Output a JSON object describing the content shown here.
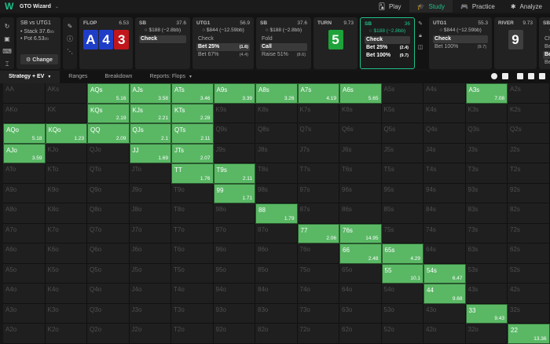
{
  "app": {
    "title": "GTO Wizard",
    "logo": "W",
    "nav": [
      {
        "label": "Play",
        "icon": "cards-icon",
        "active": false
      },
      {
        "label": "Study",
        "icon": "graduation-cap-icon",
        "active": true
      },
      {
        "label": "Practice",
        "icon": "gamepad-icon",
        "active": false
      },
      {
        "label": "Analyze",
        "icon": "bulb-icon",
        "active": false
      }
    ]
  },
  "scenario": {
    "title": "SB vs UTG1",
    "stack_label": "• Stack 37.6",
    "stack_unit": "bb",
    "pot_label": "• Pot 6.53",
    "pot_unit": "bb",
    "change_button": "⚙ Change"
  },
  "flop": {
    "name": "FLOP",
    "pot": "6.53",
    "cards": [
      {
        "rank": "A",
        "color": "blue"
      },
      {
        "rank": "4",
        "color": "blue"
      },
      {
        "rank": "3",
        "color": "red"
      }
    ]
  },
  "actions": [
    {
      "player": "SB",
      "stack": "37.6",
      "chips": "○ $188 (−2.8bb)",
      "options": [
        {
          "label": "Check",
          "size": "",
          "selected": true
        }
      ]
    },
    {
      "player": "UTG1",
      "stack": "56.9",
      "chips": "○ $844 (−12.59bb)",
      "options": [
        {
          "label": "Check",
          "size": "",
          "selected": false
        },
        {
          "label": "Bet 25%",
          "size": "(1.6)",
          "selected": true
        },
        {
          "label": "Bet 67%",
          "size": "(4.4)",
          "selected": false
        }
      ]
    },
    {
      "player": "SB",
      "stack": "37.6",
      "chips": "○ $188 (−2.8bb)",
      "options": [
        {
          "label": "Fold",
          "size": "",
          "selected": false
        },
        {
          "label": "Call",
          "size": "",
          "selected": true
        },
        {
          "label": "Raise 51%",
          "size": "(8.6)",
          "selected": false
        }
      ]
    }
  ],
  "turn": {
    "name": "TURN",
    "pot": "9.73",
    "card": "5"
  },
  "active_action": {
    "player": "SB",
    "stack": "36",
    "chips": "○ $188 (−2.8bb)",
    "options": [
      {
        "label": "Check",
        "size": "",
        "selected": true
      },
      {
        "label": "Bet 25%",
        "size": "(2.4)",
        "selected": false
      },
      {
        "label": "Bet 100%",
        "size": "(9.7)",
        "selected": false
      }
    ]
  },
  "next_action": {
    "player": "UTG1",
    "stack": "55.3",
    "chips": "○ $844 (−12.59bb)",
    "options": [
      {
        "label": "Check",
        "size": "",
        "selected": true
      },
      {
        "label": "Bet 100%",
        "size": "(9.7)",
        "selected": false
      }
    ]
  },
  "river": {
    "name": "RIVER",
    "pot": "9.73",
    "card": "9"
  },
  "partial_action": {
    "player": "SB",
    "options": [
      "Ch",
      "Be",
      "Be",
      "Be"
    ]
  },
  "toolbar": {
    "tabs": [
      {
        "label": "Strategy + EV",
        "dropdown": true,
        "active": true
      },
      {
        "label": "Ranges",
        "dropdown": false,
        "active": false
      },
      {
        "label": "Breakdown",
        "dropdown": false,
        "active": false
      },
      {
        "label": "Reports: Flops",
        "dropdown": true,
        "active": false
      }
    ]
  },
  "grid": {
    "ranks": [
      "A",
      "K",
      "Q",
      "J",
      "T",
      "9",
      "8",
      "7",
      "6",
      "5",
      "4",
      "3",
      "2"
    ],
    "highlight_color": "#5ab865",
    "cells": [
      [
        "AA",
        "AKs",
        "AQs|5.16",
        "AJs|3.58",
        "ATs|3.46",
        "A9s|3.39",
        "A8s|3.26",
        "A7s|4.19",
        "A6s|5.65",
        "A5s",
        "A4s",
        "A3s|7.08",
        "A2s"
      ],
      [
        "AKo",
        "KK",
        "KQs|2.19",
        "KJs|2.21",
        "KTs|2.28",
        "K9s",
        "K8s",
        "K7s",
        "K6s",
        "K5s",
        "K4s",
        "K3s",
        "K2s"
      ],
      [
        "AQo|5.18",
        "KQo|1.23",
        "QQ|2.09",
        "QJs|2.1",
        "QTs|2.11",
        "Q9s",
        "Q8s",
        "Q7s",
        "Q6s",
        "Q5s",
        "Q4s",
        "Q3s",
        "Q2s"
      ],
      [
        "AJo|3.59",
        "KJo",
        "QJo",
        "JJ|1.69",
        "JTs|2.07",
        "J9s",
        "J8s",
        "J7s",
        "J6s",
        "J5s",
        "J4s",
        "J3s",
        "J2s"
      ],
      [
        "ATo",
        "KTo",
        "QTo",
        "JTo",
        "TT|1.76",
        "T9s|2.11",
        "T8s",
        "T7s",
        "T6s",
        "T5s",
        "T4s",
        "T3s",
        "T2s"
      ],
      [
        "A9o",
        "K9o",
        "Q9o",
        "J9o",
        "T9o",
        "99|1.71",
        "98s",
        "97s",
        "96s",
        "95s",
        "94s",
        "93s",
        "92s"
      ],
      [
        "A8o",
        "K8o",
        "Q8o",
        "J8o",
        "T8o",
        "98o",
        "88|1.79",
        "87s",
        "86s",
        "85s",
        "84s",
        "83s",
        "82s"
      ],
      [
        "A7o",
        "K7o",
        "Q7o",
        "J7o",
        "T7o",
        "97o",
        "87o",
        "77|2.06",
        "76s|14.95",
        "75s",
        "74s",
        "73s",
        "72s"
      ],
      [
        "A6o",
        "K6o",
        "Q6o",
        "J6o",
        "T6o",
        "96o",
        "86o",
        "76o",
        "66|2.48",
        "65s|4.29",
        "64s",
        "63s",
        "62s"
      ],
      [
        "A5o",
        "K5o",
        "Q5o",
        "J5o",
        "T5o",
        "95o",
        "85o",
        "75o",
        "65o",
        "55|10.1",
        "54s|6.47",
        "53s",
        "52s"
      ],
      [
        "A4o",
        "K4o",
        "Q4o",
        "J4o",
        "T4o",
        "94o",
        "84o",
        "74o",
        "64o",
        "54o",
        "44|9.68",
        "43s",
        "42s"
      ],
      [
        "A3o",
        "K3o",
        "Q3o",
        "J3o",
        "T3o",
        "93o",
        "83o",
        "73o",
        "63o",
        "53o",
        "43o",
        "33|9.43",
        "32s"
      ],
      [
        "A2o",
        "K2o",
        "Q2o",
        "J2o",
        "T2o",
        "92o",
        "82o",
        "72o",
        "62o",
        "52o",
        "42o",
        "32o",
        "22|13.36"
      ]
    ]
  }
}
